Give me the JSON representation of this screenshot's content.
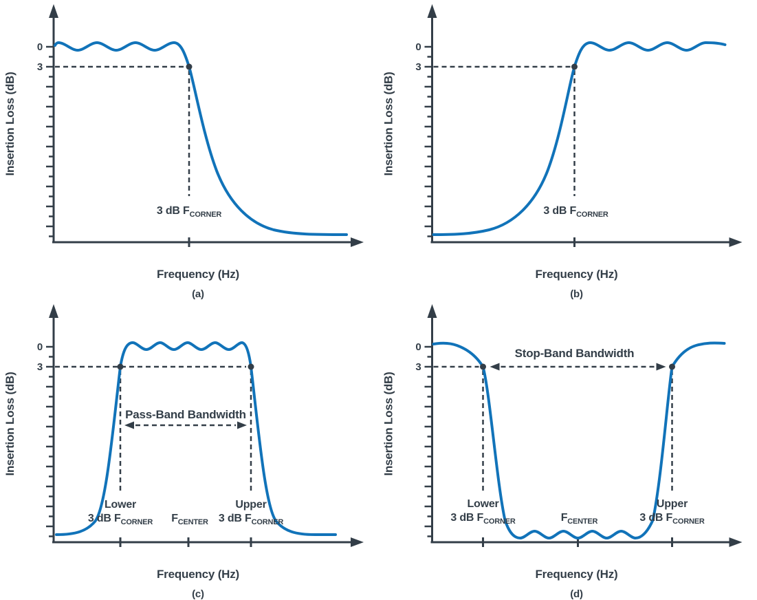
{
  "colors": {
    "background": "#ffffff",
    "curve_blue": "#1173b9",
    "ink": "#333e48"
  },
  "shared": {
    "y_axis_label": "Insertion Loss (dB)",
    "x_axis_label": "Frequency (Hz)",
    "y_tick_labels": [
      "0",
      "3"
    ]
  },
  "panels": [
    {
      "caption": "(a)",
      "filter_type": "low-pass",
      "corner_label": {
        "text": "3 dB F",
        "sub": "CORNER"
      }
    },
    {
      "caption": "(b)",
      "filter_type": "high-pass",
      "corner_label": {
        "text": "3 dB F",
        "sub": "CORNER"
      }
    },
    {
      "caption": "(c)",
      "filter_type": "band-pass",
      "bandwidth_label": "Pass-Band Bandwidth",
      "lower_label": {
        "line": "Lower",
        "text": "3 dB F",
        "sub": "CORNER"
      },
      "center_label": {
        "text": "F",
        "sub": "CENTER"
      },
      "upper_label": {
        "line": "Upper",
        "text": "3 dB F",
        "sub": "CORNER"
      }
    },
    {
      "caption": "(d)",
      "filter_type": "band-stop",
      "bandwidth_label": "Stop-Band Bandwidth",
      "lower_label": {
        "line": "Lower",
        "text": "3 dB F",
        "sub": "CORNER"
      },
      "center_label": {
        "text": "F",
        "sub": "CENTER"
      },
      "upper_label": {
        "line": "Upper",
        "text": "3 dB F",
        "sub": "CORNER"
      }
    }
  ],
  "chart_data": [
    {
      "panel": "(a)",
      "type": "line",
      "response": "low-pass",
      "xlabel": "Frequency (Hz)",
      "ylabel": "Insertion Loss (dB)",
      "y_ticks_dB": [
        0,
        3
      ],
      "marked_points": [
        {
          "label": "3 dB FCORNER",
          "insertion_loss_dB": 3
        }
      ],
      "shape": "pass band with small ripple near 0 dB at low frequency, 3 dB corner, steep monotonic roll-off to high insertion loss at high frequency"
    },
    {
      "panel": "(b)",
      "type": "line",
      "response": "high-pass",
      "xlabel": "Frequency (Hz)",
      "ylabel": "Insertion Loss (dB)",
      "y_ticks_dB": [
        0,
        3
      ],
      "marked_points": [
        {
          "label": "3 dB FCORNER",
          "insertion_loss_dB": 3
        }
      ],
      "shape": "high insertion loss at low frequency rising through 3 dB corner to pass band with small ripple near 0 dB at high frequency"
    },
    {
      "panel": "(c)",
      "type": "line",
      "response": "band-pass",
      "xlabel": "Frequency (Hz)",
      "ylabel": "Insertion Loss (dB)",
      "y_ticks_dB": [
        0,
        3
      ],
      "marked_points": [
        {
          "label": "Lower 3 dB FCORNER",
          "insertion_loss_dB": 3
        },
        {
          "label": "FCENTER"
        },
        {
          "label": "Upper 3 dB FCORNER",
          "insertion_loss_dB": 3
        }
      ],
      "bandwidth_annotation": "Pass-Band Bandwidth between lower and upper 3 dB corners",
      "shape": "high loss at band edges, rippled ~0 dB pass band between lower and upper 3 dB corners centered on FCENTER"
    },
    {
      "panel": "(d)",
      "type": "line",
      "response": "band-stop",
      "xlabel": "Frequency (Hz)",
      "ylabel": "Insertion Loss (dB)",
      "y_ticks_dB": [
        0,
        3
      ],
      "marked_points": [
        {
          "label": "Lower 3 dB FCORNER",
          "insertion_loss_dB": 3
        },
        {
          "label": "FCENTER"
        },
        {
          "label": "Upper 3 dB FCORNER",
          "insertion_loss_dB": 3
        }
      ],
      "bandwidth_annotation": "Stop-Band Bandwidth between lower and upper 3 dB corners",
      "shape": "~0 dB at band edges, deep rippled stop band between lower and upper 3 dB corners centered on FCENTER"
    }
  ]
}
